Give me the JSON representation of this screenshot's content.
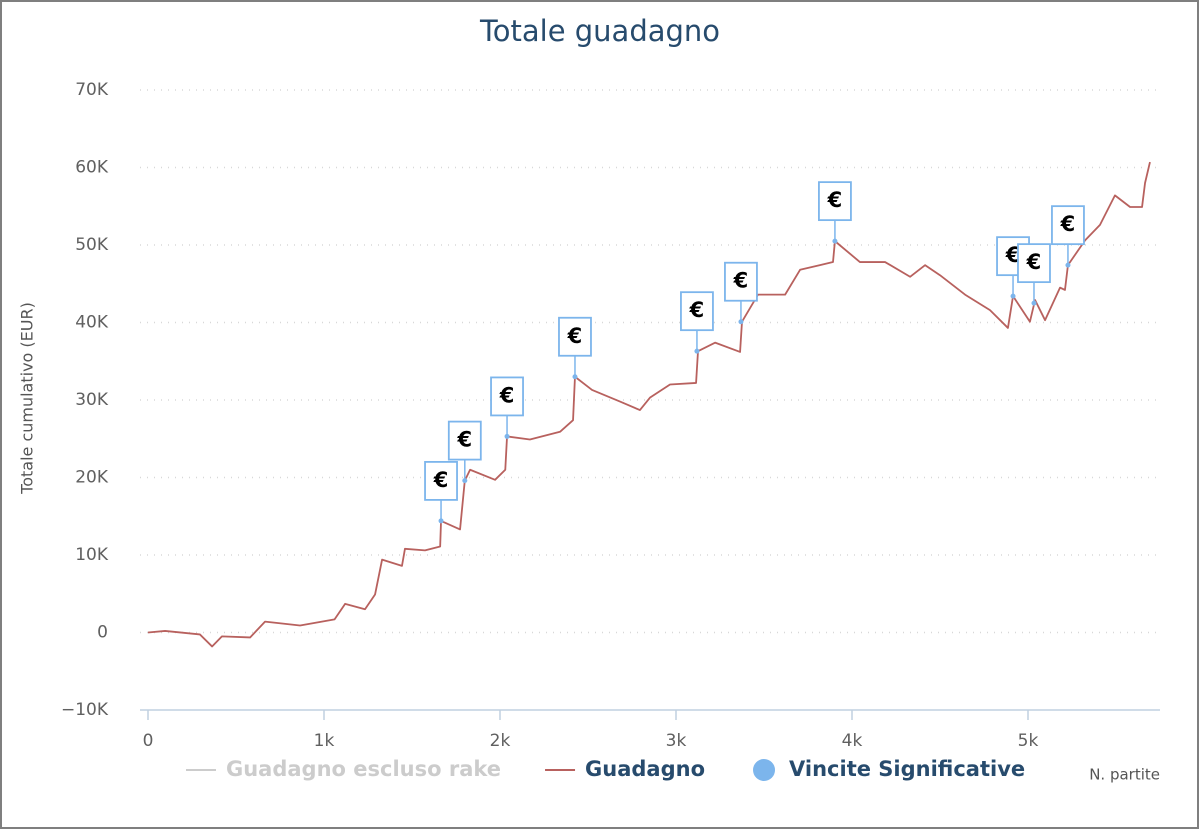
{
  "chart_data": {
    "type": "line",
    "title": "Totale guadagno",
    "y_label": "Totale cumulativo (EUR)",
    "x_label": "N. partite",
    "xlim": [
      0,
      5750
    ],
    "ylim": [
      -10000,
      70000
    ],
    "xticks": [
      0,
      {
        "value": 1000,
        "label": "1k"
      },
      {
        "value": 2000,
        "label": "2k"
      },
      {
        "value": 3000,
        "label": "3k"
      },
      {
        "value": 4000,
        "label": "4k"
      },
      {
        "value": 5000,
        "label": "5k"
      }
    ],
    "yticks": [
      {
        "value": -10000,
        "label": "−10K"
      },
      0,
      {
        "value": 10000,
        "label": "10K"
      },
      {
        "value": 20000,
        "label": "20K"
      },
      {
        "value": 30000,
        "label": "30K"
      },
      {
        "value": 40000,
        "label": "40K"
      },
      {
        "value": 50000,
        "label": "50K"
      },
      {
        "value": 60000,
        "label": "60K"
      },
      {
        "value": 70000,
        "label": "70K"
      }
    ],
    "grid": true,
    "series": [
      {
        "name": "Guadagno escluso rake",
        "color": "#cccccc",
        "visible": false
      },
      {
        "name": "Guadagno",
        "color": "#b8615e",
        "type": "line",
        "x": [
          0,
          97,
          295,
          364,
          420,
          580,
          665,
          864,
          1060,
          1120,
          1233,
          1290,
          1330,
          1443,
          1460,
          1574,
          1660,
          1665,
          1773,
          1800,
          1830,
          1972,
          2030,
          2040,
          2170,
          2341,
          2415,
          2426,
          2523,
          2682,
          2795,
          2852,
          2966,
          3114,
          3125,
          3222,
          3364,
          3375,
          3466,
          3620,
          3705,
          3818,
          3892,
          3903,
          4045,
          4188,
          4330,
          4415,
          4500,
          4642,
          4784,
          4886,
          4915,
          5011,
          5040,
          5097,
          5182,
          5210,
          5227,
          5324,
          5409,
          5494,
          5580,
          5648,
          5665,
          5693
        ],
        "values": [
          0,
          200,
          -250,
          -1800,
          -500,
          -640,
          1400,
          900,
          1700,
          3700,
          3000,
          4900,
          9400,
          8600,
          10800,
          10600,
          11100,
          14400,
          13300,
          19600,
          21000,
          19700,
          21000,
          25300,
          24900,
          25900,
          27400,
          33000,
          31300,
          29800,
          28700,
          30300,
          32000,
          32200,
          36300,
          37400,
          36200,
          40100,
          43600,
          43600,
          46800,
          47400,
          47800,
          50500,
          47800,
          47800,
          45900,
          47400,
          46100,
          43600,
          41600,
          39300,
          43400,
          40100,
          42900,
          40300,
          44500,
          44200,
          47400,
          50600,
          52600,
          56400,
          54900,
          54900,
          58000,
          60700
        ]
      },
      {
        "name": "Vincite Significative",
        "color": "#7cb5ec",
        "type": "scatter",
        "flag": "€",
        "x": [
          1665,
          1800,
          2040,
          2426,
          3119,
          3369,
          3903,
          4915,
          5034,
          5227
        ],
        "values": [
          14400,
          19600,
          25300,
          33000,
          36300,
          40100,
          50500,
          43400,
          42500,
          47400
        ]
      }
    ]
  }
}
